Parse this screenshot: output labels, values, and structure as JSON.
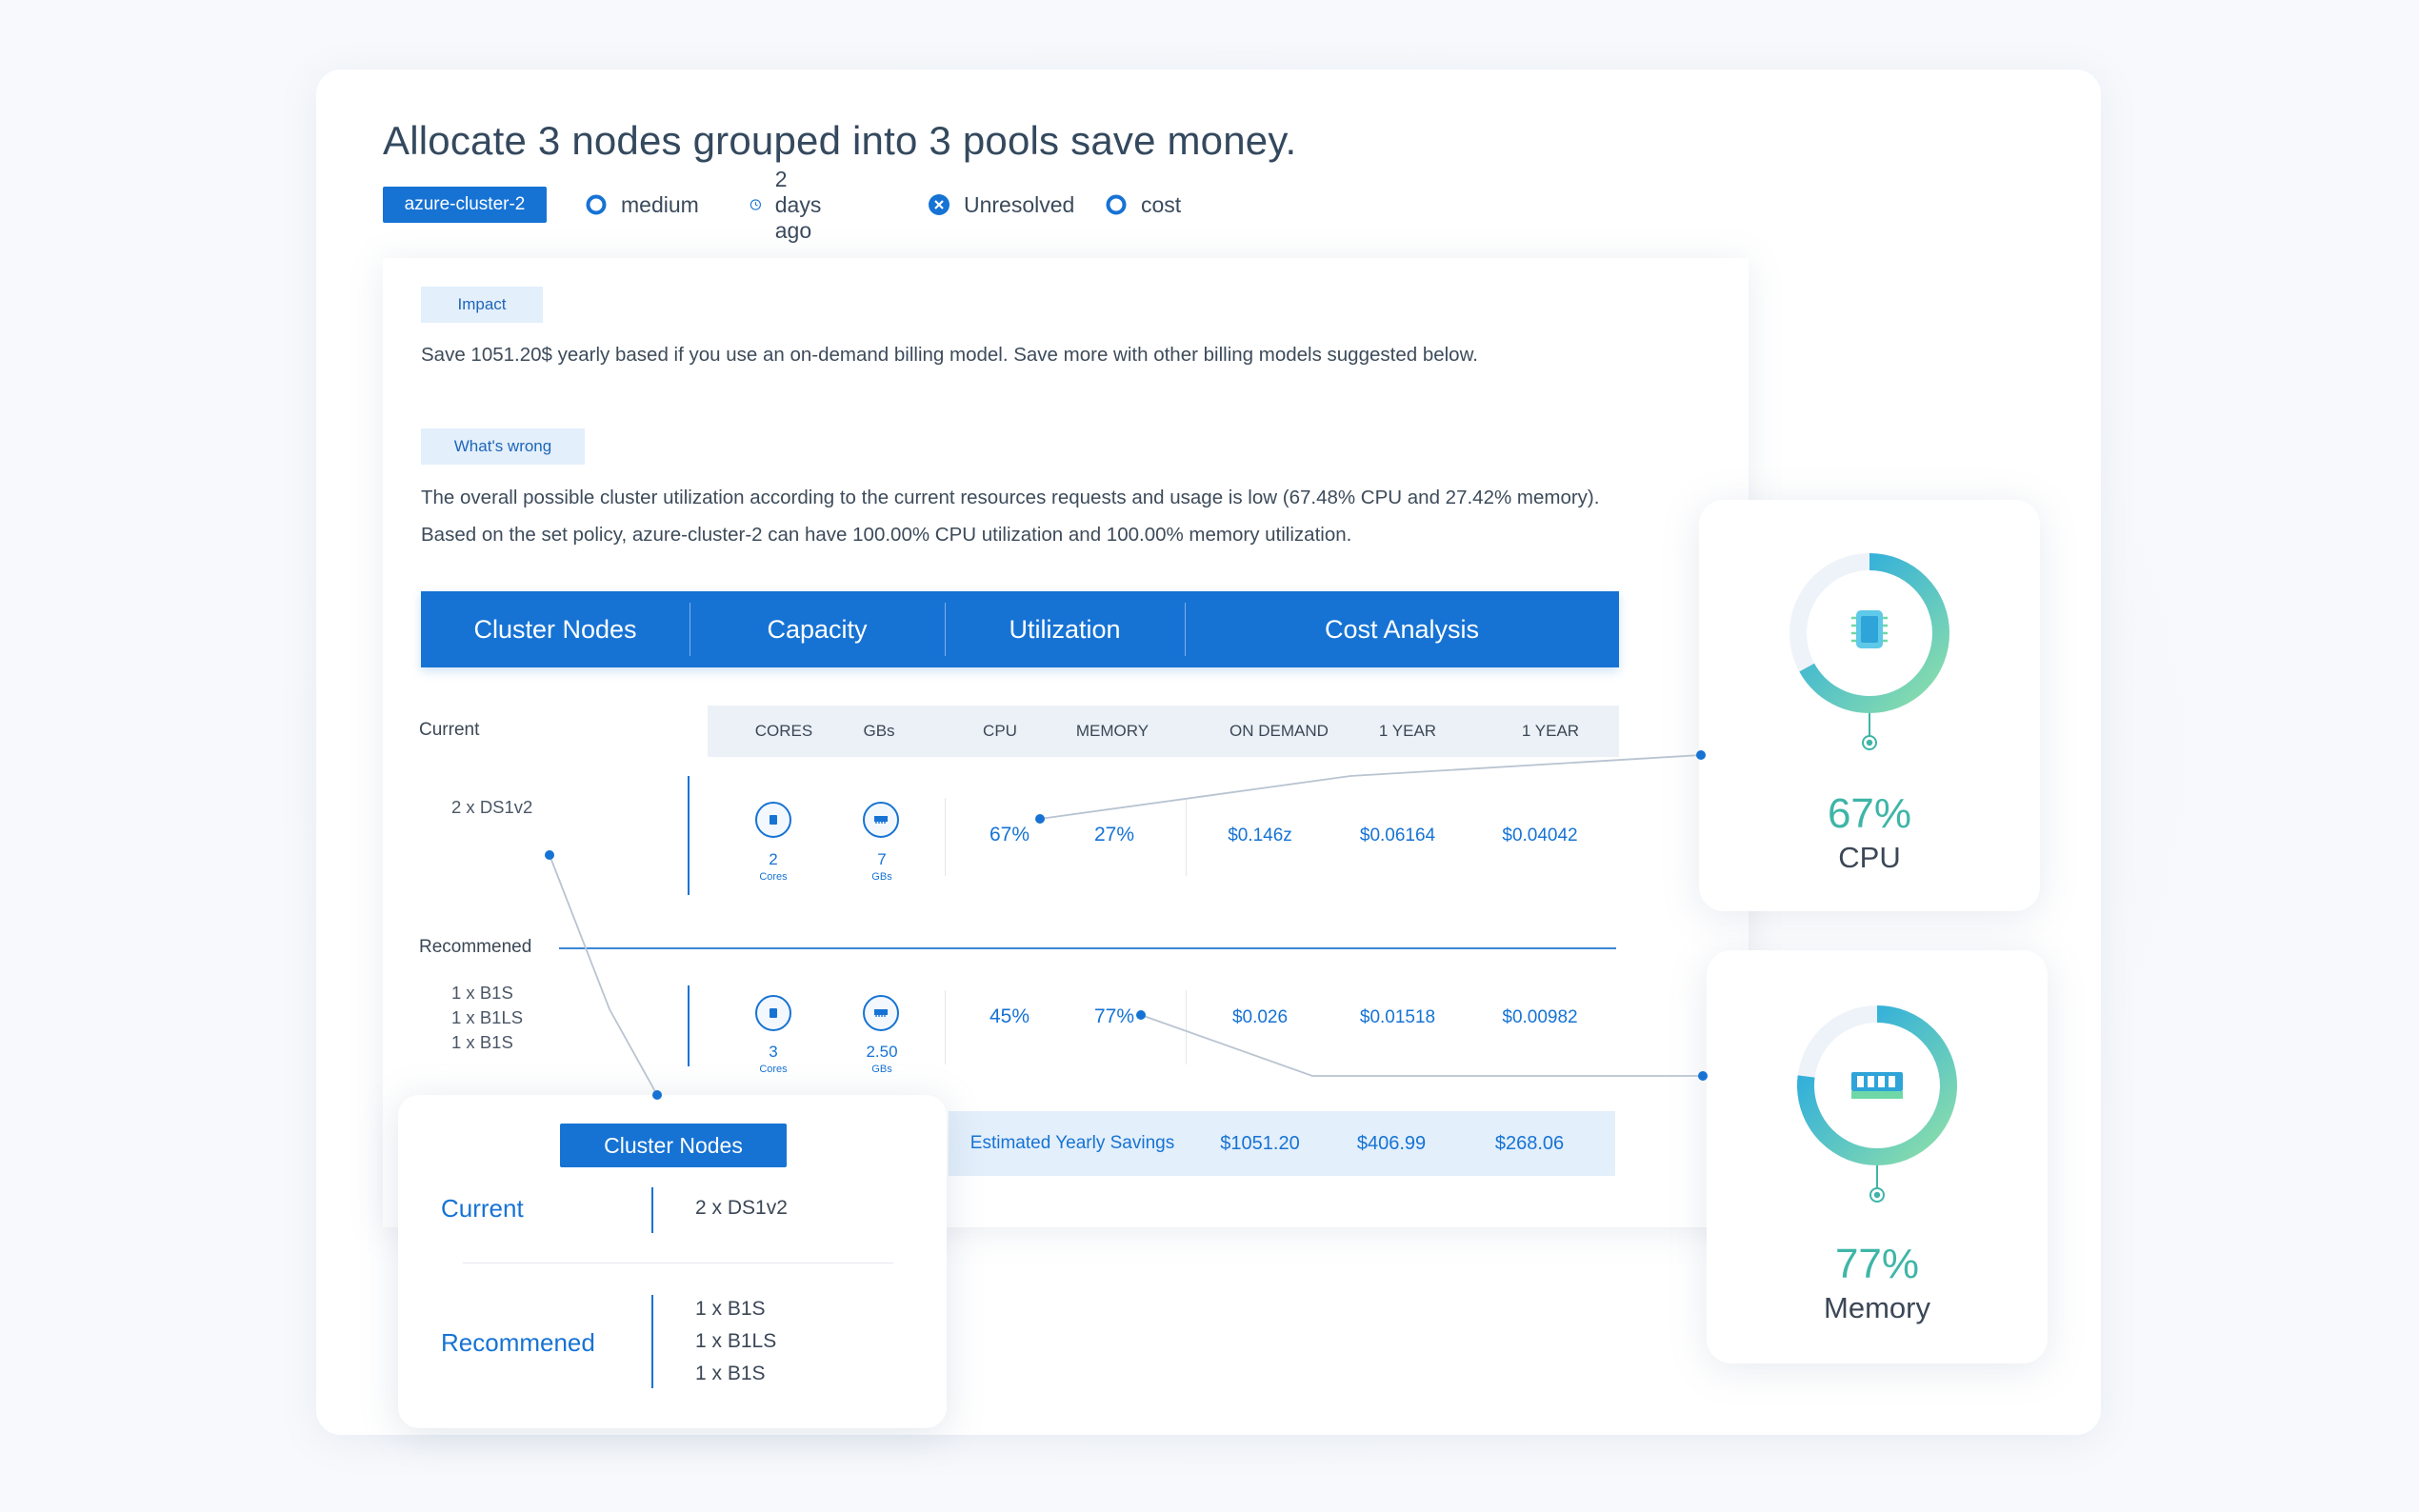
{
  "title": "Allocate 3 nodes grouped into 3 pools save money.",
  "meta": {
    "cluster": "azure-cluster-2",
    "severity": "medium",
    "time": "2 days ago",
    "status": "Unresolved",
    "category": "cost"
  },
  "impact": {
    "tag": "Impact",
    "text": "Save 1051.20$ yearly based if you use an on-demand billing model. Save more with other billing models suggested below."
  },
  "wrong": {
    "tag": "What's wrong",
    "text": "The overall possible cluster utilization according to the current resources requests and usage is low (67.48% CPU and 27.42% memory). Based on the set policy, azure-cluster-2 can have 100.00% CPU utilization and 100.00% memory utilization."
  },
  "table": {
    "headers": [
      "Cluster Nodes",
      "Capacity",
      "Utilization",
      "Cost Analysis"
    ],
    "subheaders": [
      "CORES",
      "GBs",
      "CPU",
      "MEMORY",
      "ON DEMAND",
      "1 YEAR",
      "1 YEAR"
    ],
    "current": {
      "label": "Current",
      "nodes": "2 x DS1v2",
      "cores": "2",
      "cores_unit": "Cores",
      "gbs": "7",
      "gbs_unit": "GBs",
      "cpu": "67%",
      "memory": "27%",
      "on_demand": "$0.146z",
      "year1": "$0.06164",
      "year1b": "$0.04042"
    },
    "recommended": {
      "label": "Recommened",
      "nodes": [
        "1 x B1S",
        "1 x B1LS",
        "1 x B1S"
      ],
      "cores": "3",
      "cores_unit": "Cores",
      "gbs": "2.50",
      "gbs_unit": "GBs",
      "cpu": "45%",
      "memory": "77%",
      "on_demand": "$0.026",
      "year1": "$0.01518",
      "year1b": "$0.00982"
    },
    "savings": {
      "label": "Estimated Yearly Savings",
      "on_demand": "$1051.20",
      "year1": "$406.99",
      "year1b": "$268.06"
    }
  },
  "popup": {
    "button": "Cluster Nodes",
    "current_label": "Current",
    "current_nodes": "2 x DS1v2",
    "recommended_label": "Recommened",
    "recommended_nodes": [
      "1 x B1S",
      "1 x B1LS",
      "1 x B1S"
    ]
  },
  "cpu_card": {
    "percent": "67%",
    "label": "CPU",
    "fraction": 0.67
  },
  "memory_card": {
    "percent": "77%",
    "label": "Memory",
    "fraction": 0.77
  },
  "colors": {
    "accent": "#1673d4",
    "gauge_start": "#8fe0a8",
    "gauge_end": "#1aa3e8",
    "percent": "#3fb5a7"
  },
  "icons": [
    "severity-icon",
    "clock-icon",
    "unresolved-icon",
    "category-icon",
    "chip-icon",
    "memory-icon"
  ]
}
